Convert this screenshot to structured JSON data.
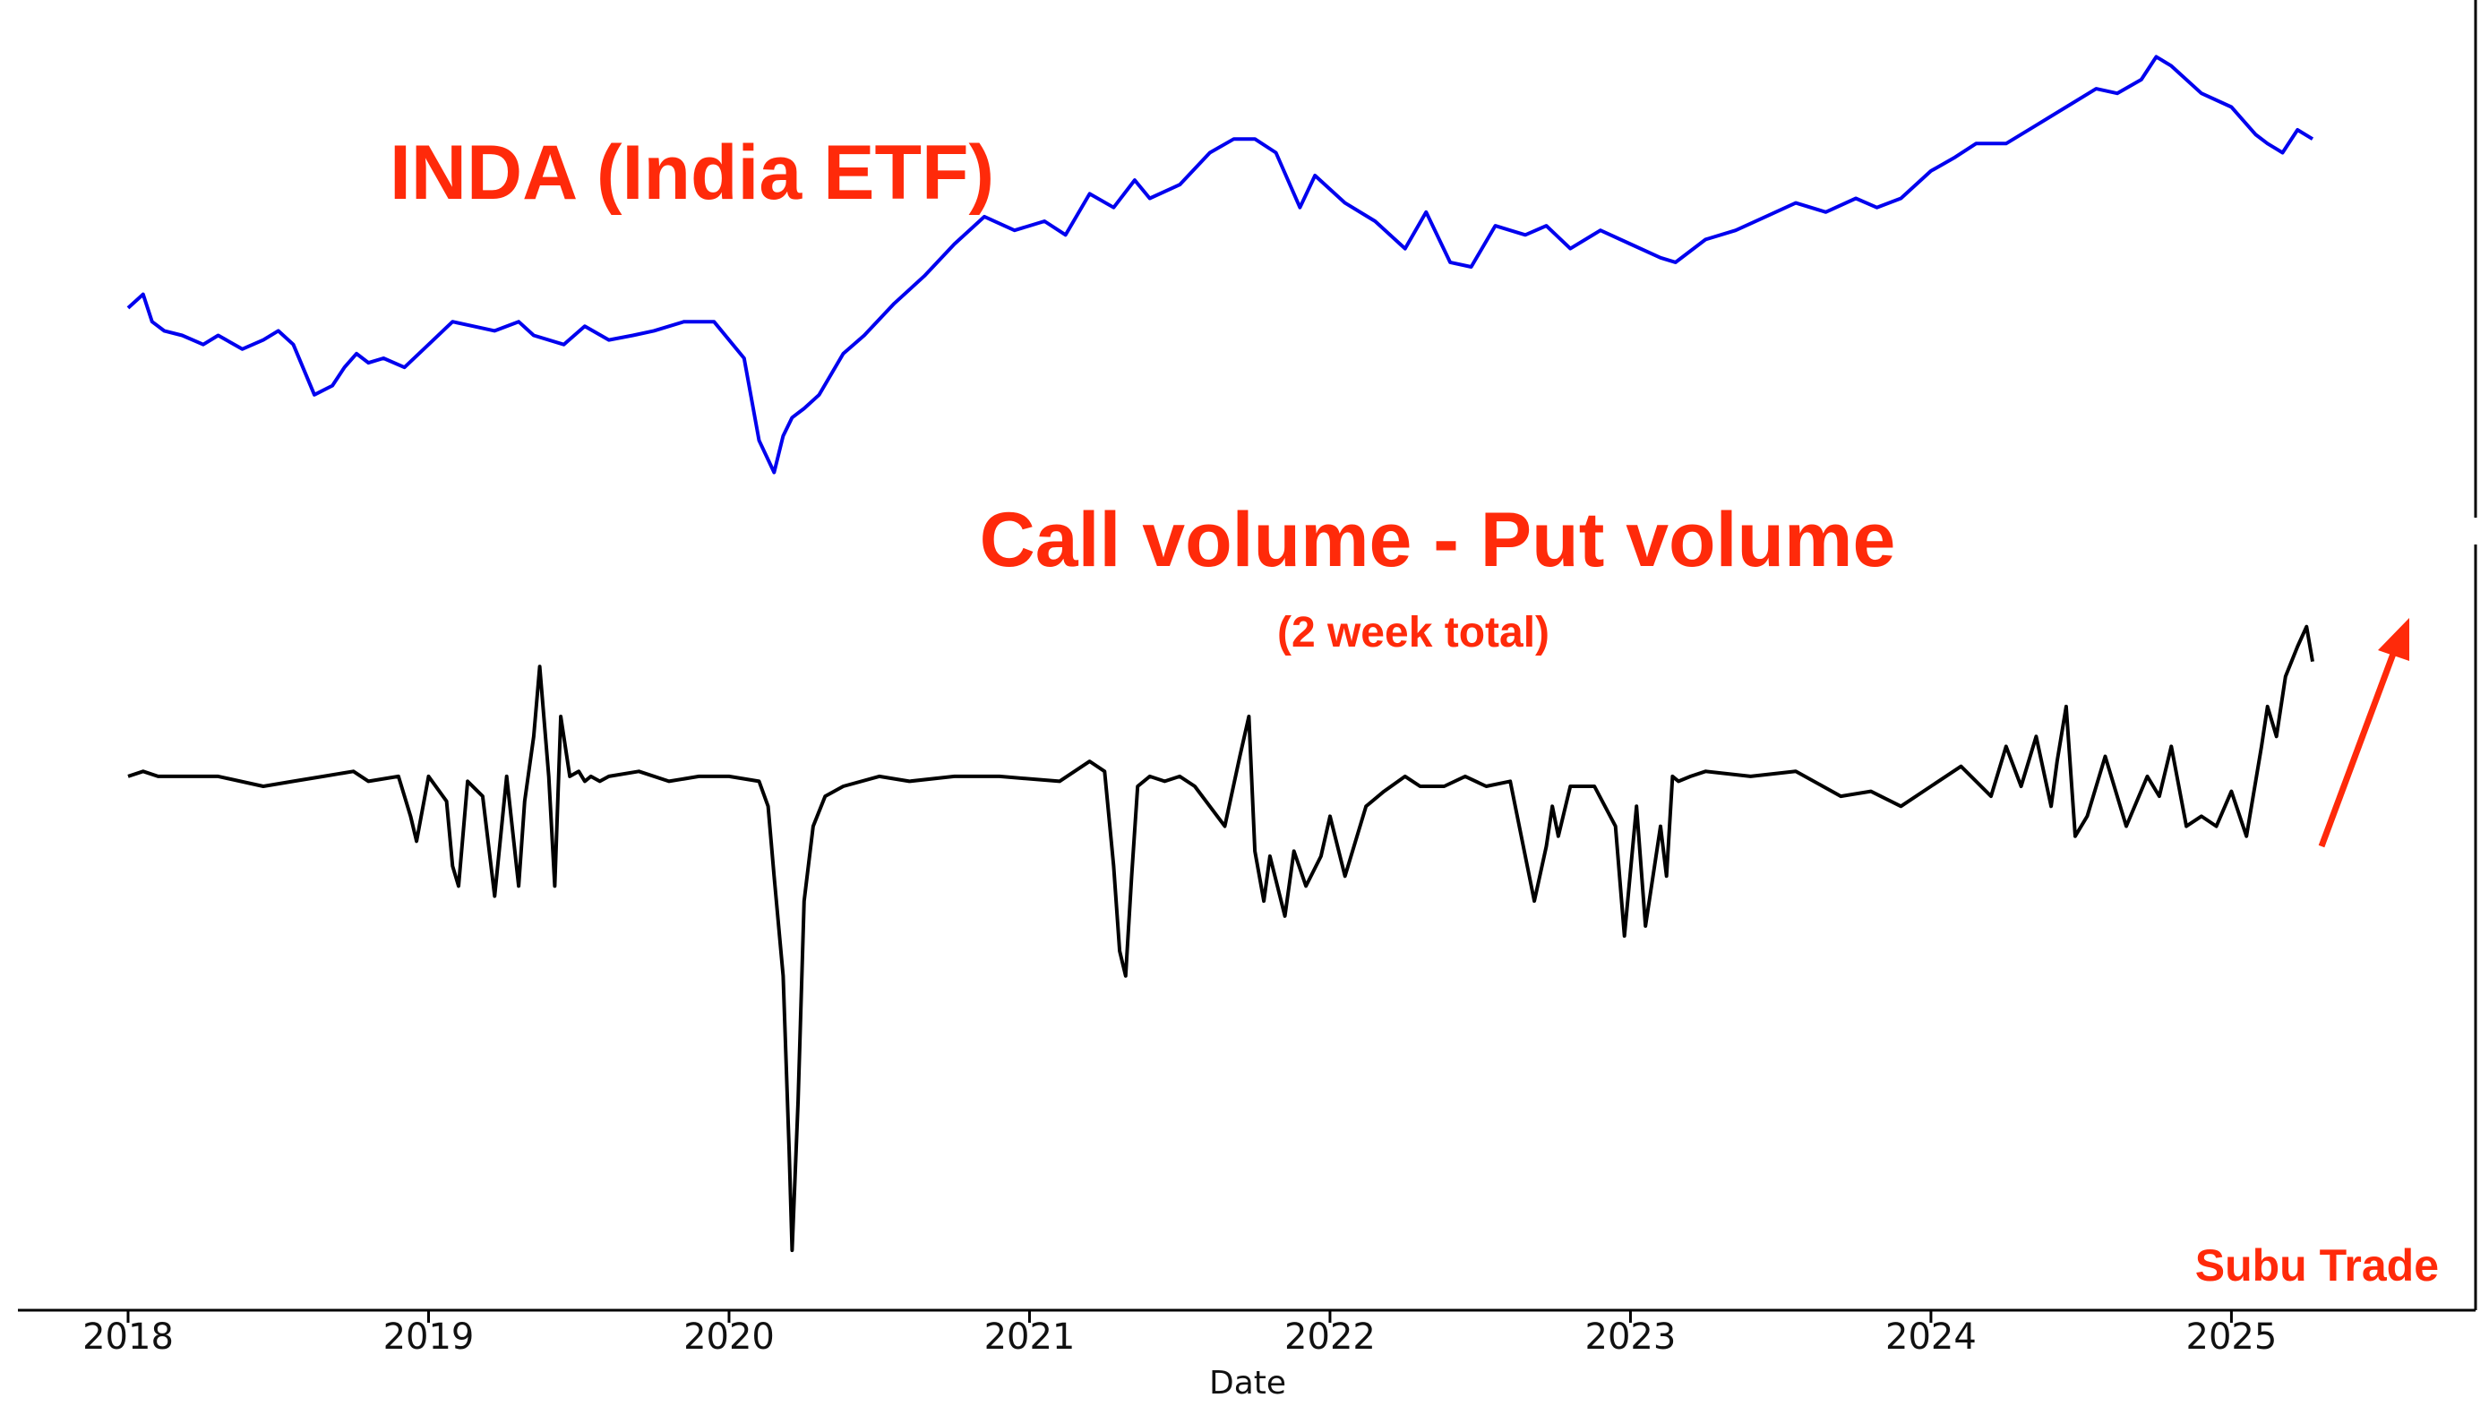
{
  "chart_data": {
    "type": "line",
    "xlabel": "Date",
    "xlim": [
      2018.0,
      2025.75
    ],
    "x_ticks": [
      "2018",
      "2019",
      "2020",
      "2021",
      "2022",
      "2023",
      "2024",
      "2025"
    ],
    "grid": false,
    "annotations": {
      "top_title": "INDA (India ETF)",
      "bottom_title": "Call volume - Put volume",
      "bottom_subtitle": "(2 week total)",
      "watermark": "Subu Trade"
    },
    "colors": {
      "inda": "#0000ee",
      "call_put": "#000000",
      "annotation": "#ff2a0a"
    },
    "panels": [
      {
        "id": "inda",
        "ylim": [
          0,
          100
        ],
        "series": [
          {
            "color": "#0000ee",
            "x": [
              2018.0,
              2018.05,
              2018.08,
              2018.12,
              2018.18,
              2018.25,
              2018.3,
              2018.38,
              2018.45,
              2018.5,
              2018.55,
              2018.62,
              2018.68,
              2018.72,
              2018.76,
              2018.8,
              2018.85,
              2018.92,
              2019.0,
              2019.08,
              2019.15,
              2019.22,
              2019.3,
              2019.35,
              2019.45,
              2019.52,
              2019.6,
              2019.68,
              2019.75,
              2019.85,
              2019.95,
              2020.05,
              2020.1,
              2020.15,
              2020.18,
              2020.21,
              2020.25,
              2020.3,
              2020.38,
              2020.45,
              2020.55,
              2020.65,
              2020.75,
              2020.85,
              2020.95,
              2021.05,
              2021.12,
              2021.2,
              2021.28,
              2021.35,
              2021.4,
              2021.5,
              2021.6,
              2021.68,
              2021.75,
              2021.82,
              2021.9,
              2021.95,
              2022.05,
              2022.15,
              2022.25,
              2022.32,
              2022.4,
              2022.47,
              2022.55,
              2022.65,
              2022.72,
              2022.8,
              2022.9,
              2023.0,
              2023.1,
              2023.15,
              2023.25,
              2023.35,
              2023.45,
              2023.55,
              2023.65,
              2023.75,
              2023.82,
              2023.9,
              2024.0,
              2024.08,
              2024.15,
              2024.25,
              2024.35,
              2024.45,
              2024.55,
              2024.62,
              2024.7,
              2024.75,
              2024.8,
              2024.9,
              2025.0,
              2025.08,
              2025.12,
              2025.17,
              2025.22,
              2025.27
            ],
            "y": [
              41,
              44,
              38,
              36,
              35,
              33,
              35,
              32,
              34,
              36,
              33,
              22,
              24,
              28,
              31,
              29,
              30,
              28,
              33,
              38,
              37,
              36,
              38,
              35,
              33,
              37,
              34,
              35,
              36,
              38,
              38,
              30,
              12,
              5,
              13,
              17,
              19,
              22,
              31,
              35,
              42,
              48,
              55,
              61,
              58,
              60,
              57,
              66,
              63,
              69,
              65,
              68,
              75,
              78,
              78,
              75,
              63,
              70,
              64,
              60,
              54,
              62,
              51,
              50,
              59,
              57,
              59,
              54,
              58,
              55,
              52,
              51,
              56,
              58,
              61,
              64,
              62,
              65,
              63,
              65,
              71,
              74,
              77,
              77,
              81,
              85,
              89,
              88,
              91,
              96,
              94,
              88,
              85,
              79,
              77,
              75,
              80,
              78
            ]
          }
        ]
      },
      {
        "id": "call_minus_put",
        "ylim": [
          -100,
          40
        ],
        "series": [
          {
            "color": "#000000",
            "x": [
              2018.0,
              2018.05,
              2018.1,
              2018.3,
              2018.45,
              2018.55,
              2018.65,
              2018.75,
              2018.8,
              2018.9,
              2018.94,
              2018.96,
              2019.0,
              2019.06,
              2019.08,
              2019.1,
              2019.13,
              2019.18,
              2019.22,
              2019.26,
              2019.3,
              2019.32,
              2019.35,
              2019.37,
              2019.4,
              2019.42,
              2019.44,
              2019.47,
              2019.5,
              2019.52,
              2019.54,
              2019.57,
              2019.6,
              2019.7,
              2019.8,
              2019.9,
              2020.0,
              2020.1,
              2020.13,
              2020.15,
              2020.18,
              2020.2,
              2020.21,
              2020.23,
              2020.25,
              2020.28,
              2020.32,
              2020.38,
              2020.5,
              2020.6,
              2020.75,
              2020.9,
              2021.1,
              2021.2,
              2021.25,
              2021.28,
              2021.3,
              2021.32,
              2021.34,
              2021.36,
              2021.4,
              2021.45,
              2021.5,
              2021.55,
              2021.65,
              2021.7,
              2021.73,
              2021.75,
              2021.78,
              2021.8,
              2021.85,
              2021.88,
              2021.92,
              2021.97,
              2022.0,
              2022.05,
              2022.12,
              2022.18,
              2022.25,
              2022.3,
              2022.38,
              2022.45,
              2022.52,
              2022.6,
              2022.68,
              2022.72,
              2022.74,
              2022.76,
              2022.8,
              2022.88,
              2022.95,
              2022.98,
              2023.02,
              2023.05,
              2023.08,
              2023.1,
              2023.12,
              2023.14,
              2023.16,
              2023.2,
              2023.25,
              2023.4,
              2023.55,
              2023.7,
              2023.8,
              2023.9,
              2024.0,
              2024.1,
              2024.2,
              2024.25,
              2024.3,
              2024.35,
              2024.4,
              2024.42,
              2024.45,
              2024.48,
              2024.52,
              2024.58,
              2024.65,
              2024.72,
              2024.76,
              2024.8,
              2024.85,
              2024.9,
              2024.95,
              2025.0,
              2025.05,
              2025.1,
              2025.12,
              2025.15,
              2025.18,
              2025.22,
              2025.25,
              2025.27
            ],
            "y": [
              0,
              1,
              0,
              0,
              -2,
              -1,
              0,
              1,
              -1,
              0,
              -8,
              -13,
              0,
              -5,
              -18,
              -22,
              -1,
              -4,
              -24,
              0,
              -22,
              -5,
              8,
              22,
              0,
              -22,
              12,
              0,
              1,
              -1,
              0,
              -1,
              0,
              1,
              -1,
              0,
              0,
              -1,
              -6,
              -20,
              -40,
              -75,
              -95,
              -65,
              -25,
              -10,
              -4,
              -2,
              0,
              -1,
              0,
              0,
              -1,
              3,
              1,
              -18,
              -35,
              -40,
              -20,
              -2,
              0,
              -1,
              0,
              -2,
              -10,
              4,
              12,
              -15,
              -25,
              -16,
              -28,
              -15,
              -22,
              -16,
              -8,
              -20,
              -6,
              -3,
              0,
              -2,
              -2,
              0,
              -2,
              -1,
              -25,
              -14,
              -6,
              -12,
              -2,
              -2,
              -10,
              -32,
              -6,
              -30,
              -18,
              -10,
              -20,
              0,
              -1,
              0,
              1,
              0,
              1,
              -4,
              -3,
              -6,
              -2,
              2,
              -4,
              6,
              -2,
              8,
              -6,
              3,
              14,
              -12,
              -8,
              4,
              -10,
              0,
              -4,
              6,
              -10,
              -8,
              -10,
              -3,
              -12,
              6,
              14,
              8,
              20,
              26,
              30,
              23
            ]
          }
        ]
      }
    ]
  }
}
